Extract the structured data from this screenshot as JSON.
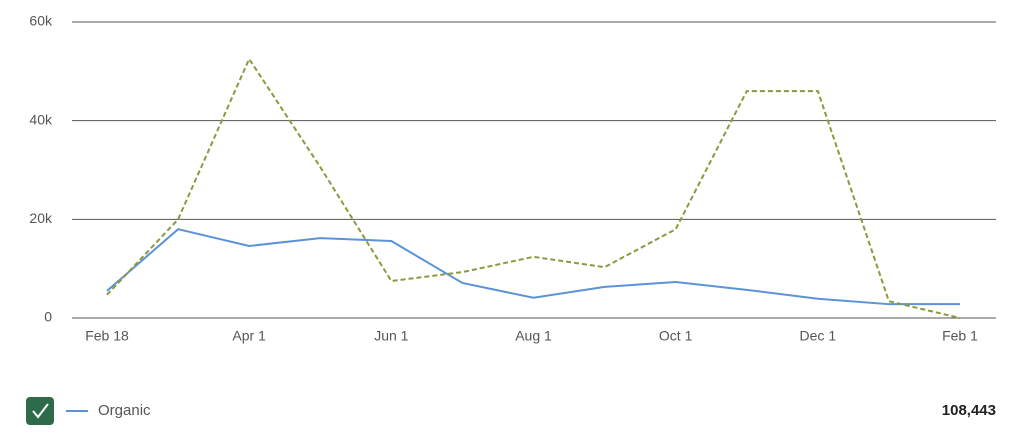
{
  "chart_data": {
    "type": "line",
    "categories": [
      "Feb 18",
      null,
      "Apr 1",
      null,
      "Jun 1",
      null,
      "Aug 1",
      null,
      "Oct 1",
      null,
      "Dec 1",
      null,
      "Feb 1"
    ],
    "series": [
      {
        "name": "Organic",
        "color": "#5b93d9",
        "values": [
          5500,
          18000,
          14600,
          16200,
          15600,
          7100,
          4100,
          6300,
          7300,
          5700,
          3900,
          2800,
          2800
        ]
      },
      {
        "color": "#8a9a3c",
        "dash": true,
        "values": [
          4700,
          20000,
          52500,
          30600,
          7500,
          9300,
          12400,
          10300,
          18000,
          46000,
          46000,
          3400,
          0
        ]
      }
    ],
    "ylim": [
      0,
      60000
    ],
    "yticks": [
      0,
      {
        "value": 20000,
        "label": "20k"
      },
      {
        "value": 40000,
        "label": "40k"
      },
      {
        "value": 60000,
        "label": "60k"
      }
    ],
    "grid": true,
    "summary": "108,443"
  }
}
